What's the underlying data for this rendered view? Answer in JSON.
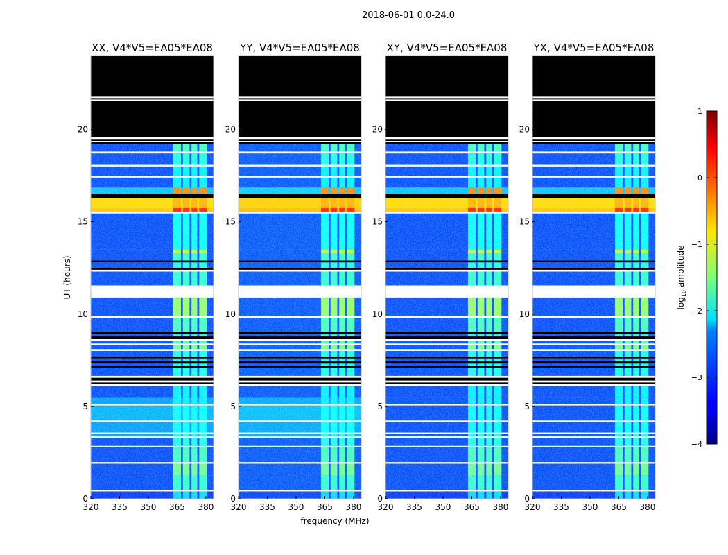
{
  "chart_data": {
    "type": "heatmap",
    "title": "2018-06-01 0.0-24.0",
    "xlabel": "frequency (MHz)",
    "ylabel": "UT (hours)",
    "xlim": [
      320,
      384
    ],
    "ylim": [
      0,
      24
    ],
    "xticks": [
      "320",
      "335",
      "350",
      "365",
      "380"
    ],
    "yticks": [
      "0",
      "5",
      "10",
      "15",
      "20"
    ],
    "colorbar": {
      "label_main": "log",
      "label_sub": "10",
      "label_rest": " amplitude",
      "range": [
        -4,
        1
      ],
      "ticks": [
        "1",
        "0",
        "−1",
        "−2",
        "−3",
        "−4"
      ],
      "colormap": "jet"
    },
    "rfi_bands_mhz": [
      [
        363,
        367
      ],
      [
        368,
        371.5
      ],
      [
        372.5,
        375.5
      ],
      [
        376.5,
        380.5
      ]
    ],
    "segments_note": "start_hr, end_hr, kind, background log10 amplitude, rfi-band log10 amplitude",
    "segments": [
      [
        0,
        0.4,
        "data",
        -3.1,
        -2.3
      ],
      [
        0.4,
        0.48,
        "white"
      ],
      [
        0.48,
        1.3,
        "data",
        -3.0,
        -1.9
      ],
      [
        1.3,
        1.9,
        "data",
        -3.0,
        -1.6
      ],
      [
        1.9,
        1.98,
        "white"
      ],
      [
        1.98,
        2.8,
        "data",
        -3.0,
        -1.8
      ],
      [
        2.8,
        2.86,
        "white"
      ],
      [
        2.86,
        3.3,
        "data",
        -3.0,
        -2.0
      ],
      [
        3.3,
        3.38,
        "white"
      ],
      [
        3.38,
        3.5,
        "data",
        -2.6,
        -2.0
      ],
      [
        3.5,
        3.58,
        "white"
      ],
      [
        3.58,
        4.15,
        "data",
        -2.6,
        -2.1
      ],
      [
        4.15,
        4.23,
        "white"
      ],
      [
        4.23,
        5.05,
        "data",
        -2.5,
        -2.1
      ],
      [
        5.05,
        5.13,
        "white"
      ],
      [
        5.13,
        5.5,
        "data",
        -2.6,
        -2.2
      ],
      [
        5.5,
        6.1,
        "data",
        -3.0,
        -2.2
      ],
      [
        6.1,
        6.2,
        "white"
      ],
      [
        6.2,
        6.3,
        "black"
      ],
      [
        6.3,
        6.4,
        "white"
      ],
      [
        6.4,
        6.55,
        "black"
      ],
      [
        6.55,
        6.65,
        "white"
      ],
      [
        6.65,
        7.1,
        "data",
        -3.0,
        -2.0
      ],
      [
        7.1,
        7.2,
        "black"
      ],
      [
        7.2,
        7.35,
        "data",
        -3.0,
        -2.0
      ],
      [
        7.35,
        7.45,
        "black"
      ],
      [
        7.45,
        7.6,
        "data",
        -3.0,
        -2.0
      ],
      [
        7.6,
        7.7,
        "black"
      ],
      [
        7.7,
        8.0,
        "data",
        -3.0,
        -2.0
      ],
      [
        8.0,
        8.1,
        "white"
      ],
      [
        8.1,
        8.3,
        "data",
        -3.0,
        -1.5
      ],
      [
        8.3,
        8.4,
        "white"
      ],
      [
        8.4,
        8.55,
        "data",
        -3.0,
        -1.8
      ],
      [
        8.55,
        8.65,
        "white"
      ],
      [
        8.65,
        8.8,
        "black"
      ],
      [
        8.8,
        8.9,
        "data",
        -3.0,
        -2.0
      ],
      [
        8.9,
        9.05,
        "black"
      ],
      [
        9.05,
        9.8,
        "data",
        -3.0,
        -1.8
      ],
      [
        9.8,
        9.88,
        "white"
      ],
      [
        9.88,
        10.9,
        "data",
        -3.0,
        -1.4
      ],
      [
        10.9,
        11.55,
        "white"
      ],
      [
        11.55,
        12.3,
        "data",
        -3.0,
        -1.9
      ],
      [
        12.3,
        12.4,
        "white"
      ],
      [
        12.4,
        12.5,
        "black"
      ],
      [
        12.5,
        12.8,
        "data",
        -3.0,
        -2.0
      ],
      [
        12.8,
        12.9,
        "black"
      ],
      [
        12.9,
        13.3,
        "data",
        -3.0,
        -1.9
      ],
      [
        13.3,
        13.5,
        "data",
        -3.0,
        -1.3
      ],
      [
        13.5,
        15.45,
        "data",
        -3.0,
        -2.1
      ],
      [
        15.45,
        15.55,
        "white"
      ],
      [
        15.55,
        15.75,
        "data",
        -0.6,
        0.2
      ],
      [
        15.75,
        16.3,
        "data",
        -0.7,
        -0.5
      ],
      [
        16.3,
        16.5,
        "black"
      ],
      [
        16.5,
        16.85,
        "data",
        -2.4,
        -0.3
      ],
      [
        16.85,
        17.4,
        "data",
        -3.0,
        -2.2
      ],
      [
        17.4,
        17.48,
        "white"
      ],
      [
        17.48,
        18.0,
        "data",
        -3.0,
        -2.2
      ],
      [
        18.0,
        18.08,
        "white"
      ],
      [
        18.08,
        18.7,
        "data",
        -3.0,
        -2.0
      ],
      [
        18.7,
        18.8,
        "white"
      ],
      [
        18.8,
        19.2,
        "data",
        -3.0,
        -1.8
      ],
      [
        19.2,
        19.32,
        "black"
      ],
      [
        19.32,
        19.38,
        "white"
      ],
      [
        19.38,
        19.45,
        "black"
      ],
      [
        19.45,
        19.6,
        "white"
      ],
      [
        19.6,
        21.55,
        "black"
      ],
      [
        21.55,
        21.62,
        "white"
      ],
      [
        21.62,
        21.7,
        "black"
      ],
      [
        21.7,
        21.77,
        "white"
      ],
      [
        21.77,
        24,
        "black"
      ]
    ],
    "panels": [
      {
        "title": "XX, V4*V5=EA05*EA08",
        "light_band": true,
        "bg_shift": 0.0
      },
      {
        "title": "YY, V4*V5=EA05*EA08",
        "light_band": true,
        "bg_shift": 0.05
      },
      {
        "title": "XY, V4*V5=EA05*EA08",
        "light_band": false,
        "bg_shift": 0.0
      },
      {
        "title": "YX, V4*V5=EA05*EA08",
        "light_band": false,
        "bg_shift": 0.0
      }
    ]
  }
}
